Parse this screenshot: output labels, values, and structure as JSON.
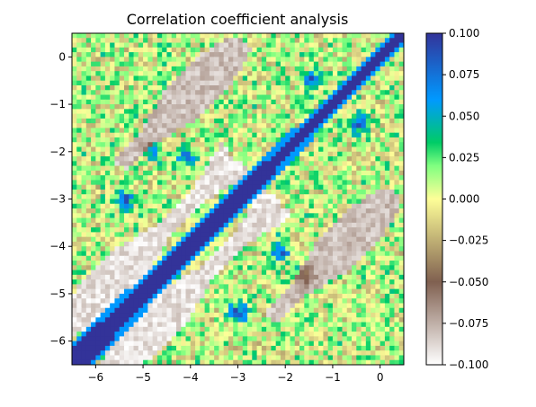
{
  "chart_data": {
    "type": "heatmap",
    "title": "Correlation coefficient analysis",
    "xlabel": "",
    "ylabel": "",
    "xlim": [
      -6.5,
      0.5
    ],
    "ylim": [
      -6.5,
      0.5
    ],
    "x_ticks": [
      -6,
      -5,
      -4,
      -3,
      -2,
      -1,
      0
    ],
    "y_ticks": [
      0,
      -1,
      -2,
      -3,
      -4,
      -5,
      -6
    ],
    "x_tick_labels": [
      "−6",
      "−5",
      "−4",
      "−3",
      "−2",
      "−1",
      "0"
    ],
    "y_tick_labels": [
      "0",
      "−1",
      "−2",
      "−3",
      "−4",
      "−5",
      "−6"
    ],
    "colorbar": {
      "min": -0.1,
      "max": 0.1,
      "ticks": [
        0.1,
        0.075,
        0.05,
        0.025,
        0.0,
        -0.025,
        -0.05,
        -0.075,
        -0.1
      ],
      "tick_labels": [
        "0.100",
        "0.075",
        "0.050",
        "0.025",
        "0.000",
        "−0.025",
        "−0.050",
        "−0.075",
        "−0.100"
      ],
      "colormap": "terrain_r"
    },
    "grid": false,
    "resolution": 70,
    "colormap_stops": [
      {
        "v": 0.0,
        "color": "#ffffff"
      },
      {
        "v": 0.25,
        "color": "#806050"
      },
      {
        "v": 0.5,
        "color": "#fefe98"
      },
      {
        "v": 0.6,
        "color": "#80ff80"
      },
      {
        "v": 0.67,
        "color": "#00cc66"
      },
      {
        "v": 0.8,
        "color": "#0099ff"
      },
      {
        "v": 1.0,
        "color": "#333399"
      }
    ],
    "features": {
      "diagonal": {
        "value": 0.1,
        "half_width_min": 0.12,
        "half_width_max": 0.32
      },
      "white_bands": [
        {
          "offset": 0.9,
          "value": -0.1,
          "from": -6.3,
          "to": -2.6
        },
        {
          "offset": -0.9,
          "value": -0.1,
          "from": -6.3,
          "to": -2.6
        },
        {
          "offset": 3.2,
          "value": -0.09,
          "from": -3.9,
          "to": -1.3
        },
        {
          "offset": -3.2,
          "value": -0.09,
          "from": -3.9,
          "to": -1.3
        }
      ],
      "blue_blobs": [
        {
          "x": -2.1,
          "y": -4.1,
          "value": 0.07
        },
        {
          "x": -4.1,
          "y": -2.1,
          "value": 0.07
        },
        {
          "x": -3.0,
          "y": -5.4,
          "value": 0.08
        },
        {
          "x": -5.4,
          "y": -3.0,
          "value": 0.08
        },
        {
          "x": -0.5,
          "y": -1.4,
          "value": 0.08
        },
        {
          "x": -1.4,
          "y": -0.5,
          "value": 0.06
        },
        {
          "x": -4.8,
          "y": -2.0,
          "value": 0.04
        },
        {
          "x": -1.6,
          "y": -4.6,
          "value": 0.04
        }
      ],
      "base_value": 0.005
    }
  }
}
